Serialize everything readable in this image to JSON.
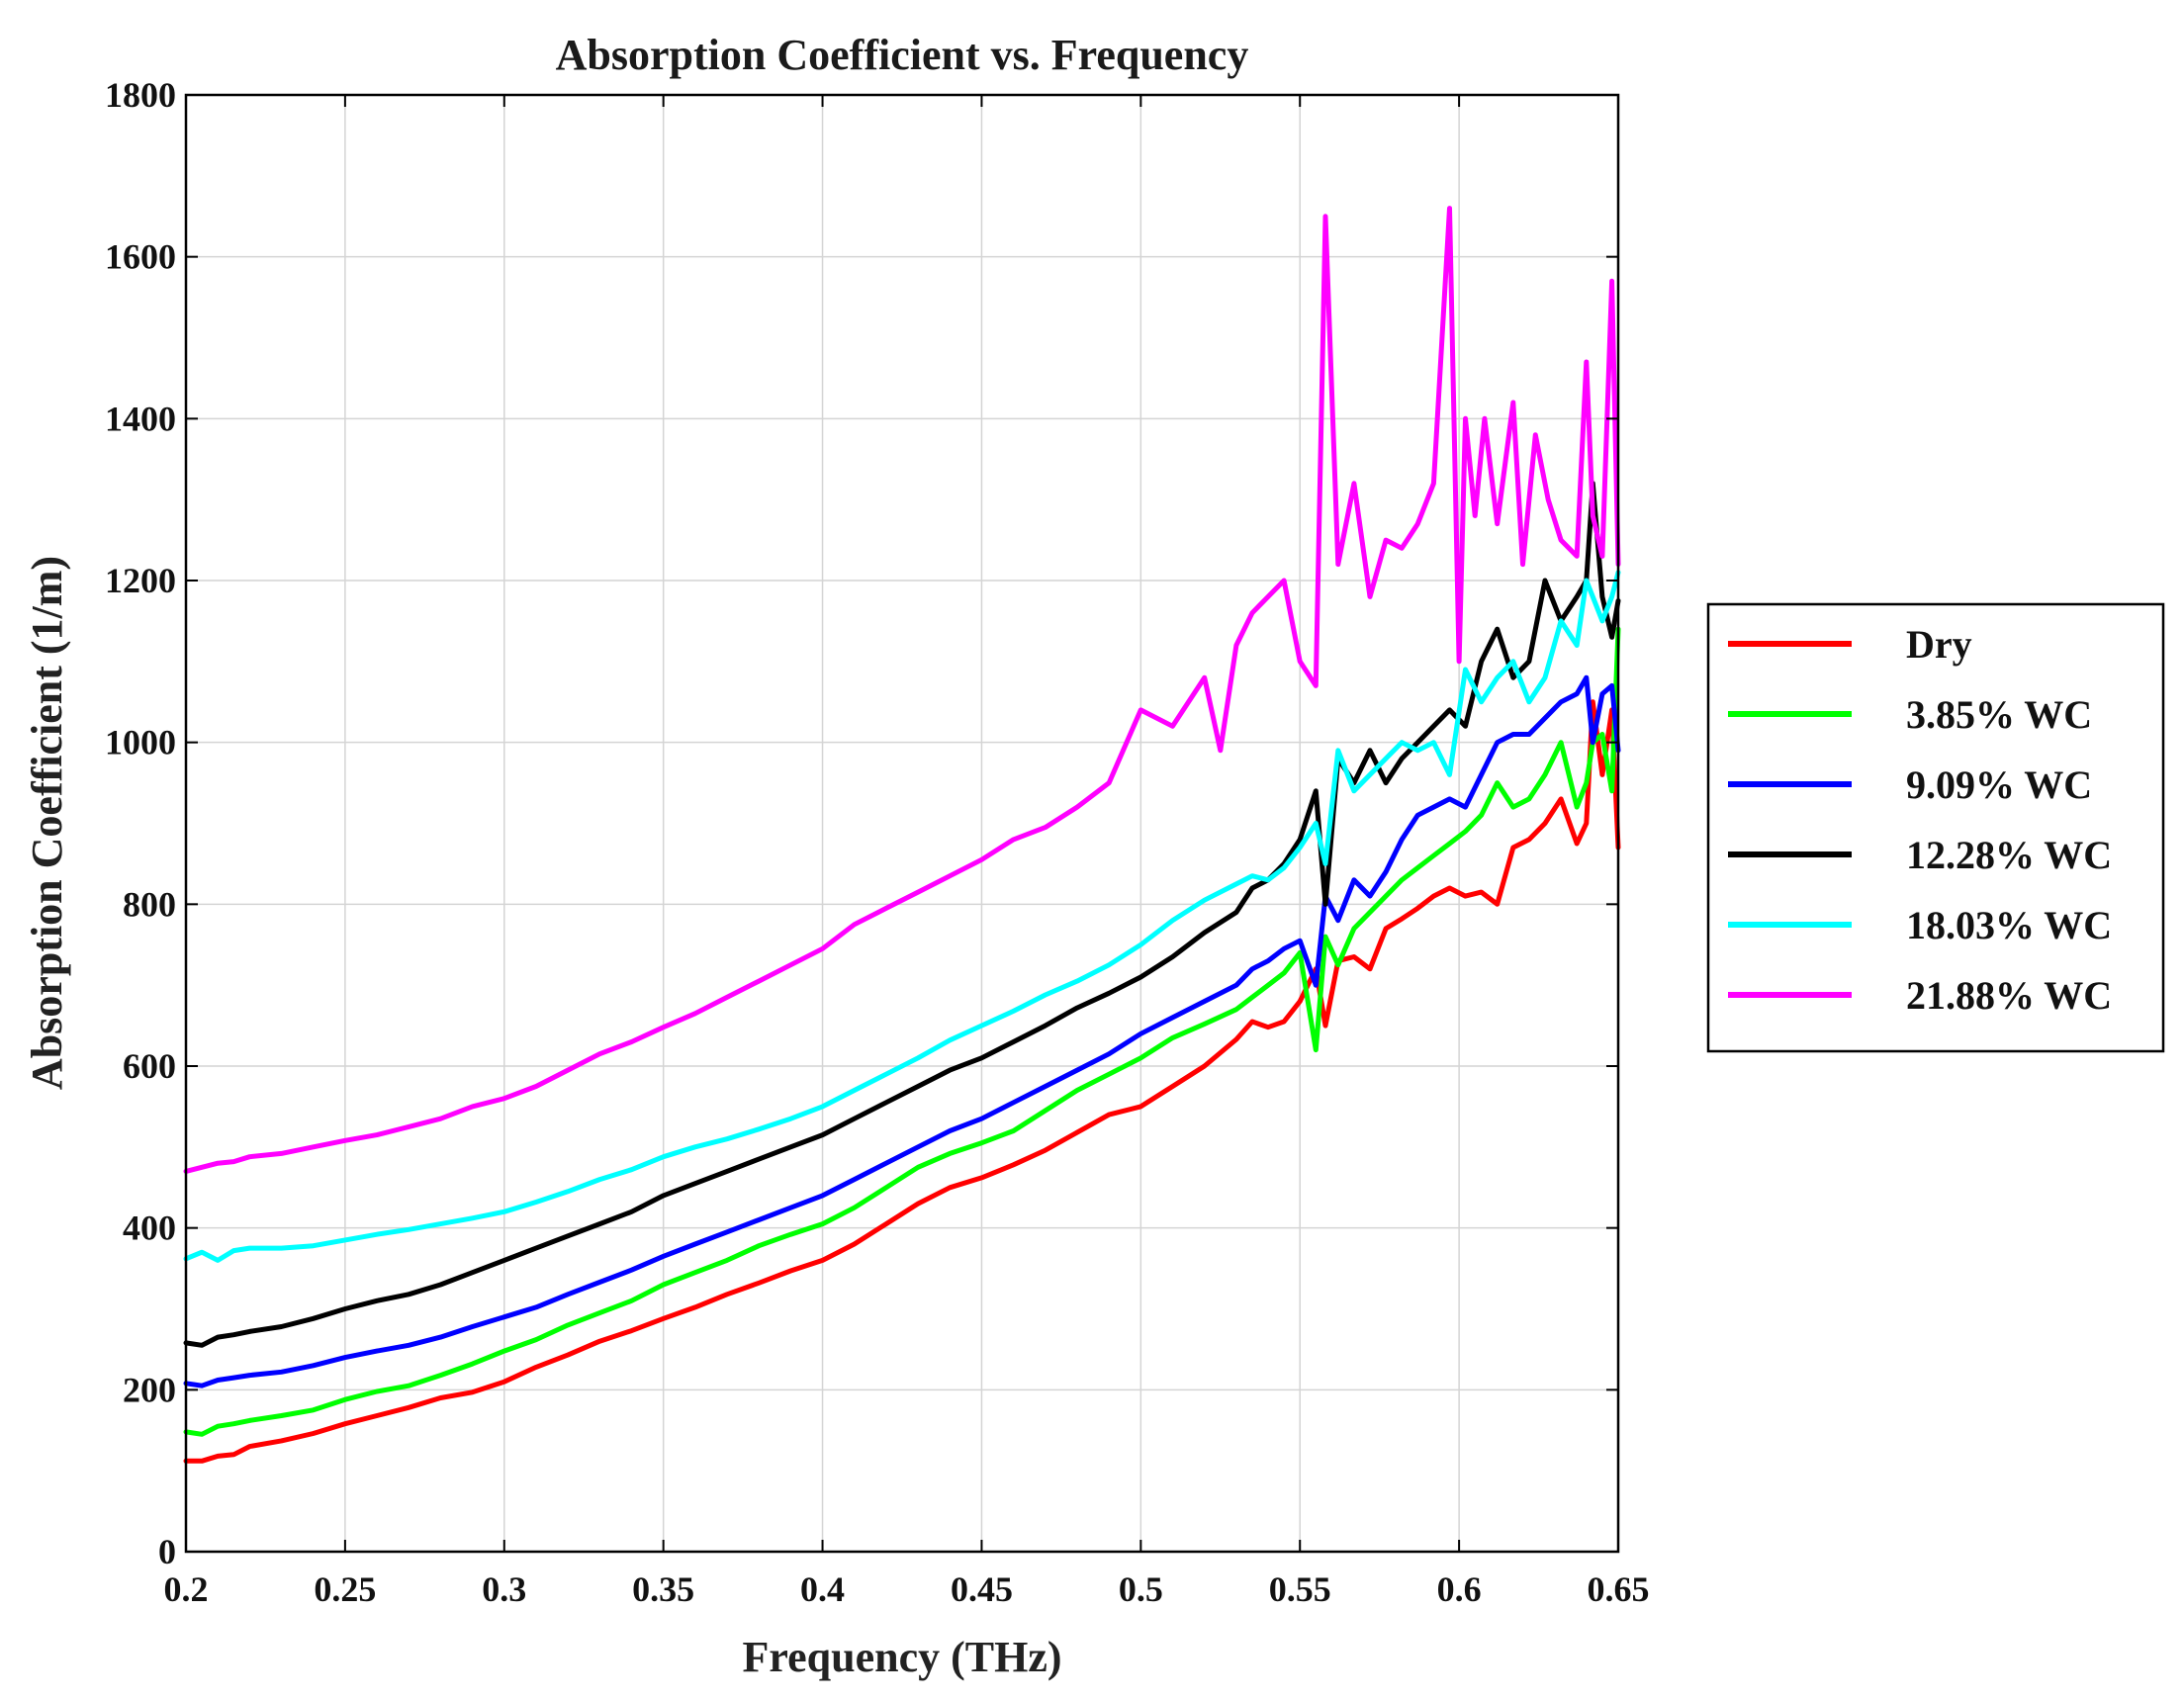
{
  "chart_data": {
    "type": "line",
    "title": "Absorption Coefficient vs. Frequency",
    "xlabel": "Frequency (THz)",
    "ylabel": "Absorption Coefficient (1/m)",
    "xlim": [
      0.2,
      0.65
    ],
    "ylim": [
      0,
      1800
    ],
    "xticks": [
      0.2,
      0.25,
      0.3,
      0.35,
      0.4,
      0.45,
      0.5,
      0.55,
      0.6,
      0.65
    ],
    "xtick_labels": [
      "0.2",
      "0.25",
      "0.3",
      "0.35",
      "0.4",
      "0.45",
      "0.5",
      "0.55",
      "0.6",
      "0.65"
    ],
    "yticks": [
      0,
      200,
      400,
      600,
      800,
      1000,
      1200,
      1400,
      1600,
      1800
    ],
    "ytick_labels": [
      "0",
      "200",
      "400",
      "600",
      "800",
      "1000",
      "1200",
      "1400",
      "1600",
      "1800"
    ],
    "grid": true,
    "legend_position": "right",
    "series": [
      {
        "name": "Dry",
        "color": "#ff0000",
        "x": [
          0.2,
          0.205,
          0.21,
          0.215,
          0.22,
          0.23,
          0.24,
          0.25,
          0.26,
          0.27,
          0.28,
          0.29,
          0.3,
          0.31,
          0.32,
          0.33,
          0.34,
          0.35,
          0.36,
          0.37,
          0.38,
          0.39,
          0.4,
          0.41,
          0.42,
          0.43,
          0.44,
          0.45,
          0.46,
          0.47,
          0.48,
          0.49,
          0.5,
          0.51,
          0.52,
          0.53,
          0.535,
          0.54,
          0.545,
          0.55,
          0.555,
          0.558,
          0.562,
          0.567,
          0.572,
          0.577,
          0.582,
          0.587,
          0.592,
          0.597,
          0.602,
          0.607,
          0.612,
          0.617,
          0.622,
          0.627,
          0.632,
          0.637,
          0.64,
          0.642,
          0.645,
          0.648,
          0.65
        ],
        "y": [
          112,
          112,
          118,
          120,
          130,
          137,
          146,
          158,
          168,
          178,
          190,
          197,
          210,
          228,
          243,
          260,
          273,
          288,
          302,
          318,
          332,
          347,
          360,
          380,
          405,
          430,
          450,
          462,
          478,
          496,
          518,
          540,
          550,
          575,
          600,
          633,
          655,
          648,
          655,
          680,
          720,
          650,
          730,
          735,
          720,
          770,
          782,
          795,
          810,
          820,
          810,
          815,
          800,
          870,
          880,
          900,
          930,
          875,
          900,
          1050,
          960,
          1040,
          870
        ]
      },
      {
        "name": "3.85% WC",
        "color": "#00ff00",
        "x": [
          0.2,
          0.205,
          0.21,
          0.215,
          0.22,
          0.23,
          0.24,
          0.25,
          0.26,
          0.27,
          0.28,
          0.29,
          0.3,
          0.31,
          0.32,
          0.33,
          0.34,
          0.35,
          0.36,
          0.37,
          0.38,
          0.39,
          0.4,
          0.41,
          0.42,
          0.43,
          0.44,
          0.45,
          0.46,
          0.47,
          0.48,
          0.49,
          0.5,
          0.51,
          0.52,
          0.53,
          0.535,
          0.54,
          0.545,
          0.55,
          0.555,
          0.558,
          0.562,
          0.567,
          0.572,
          0.577,
          0.582,
          0.587,
          0.592,
          0.597,
          0.602,
          0.607,
          0.612,
          0.617,
          0.622,
          0.627,
          0.632,
          0.637,
          0.64,
          0.642,
          0.645,
          0.648,
          0.65
        ],
        "y": [
          148,
          145,
          155,
          158,
          162,
          168,
          175,
          188,
          198,
          205,
          218,
          232,
          248,
          262,
          280,
          295,
          310,
          330,
          345,
          360,
          378,
          392,
          405,
          425,
          450,
          475,
          492,
          505,
          520,
          545,
          570,
          590,
          610,
          635,
          652,
          670,
          685,
          700,
          715,
          740,
          620,
          760,
          725,
          770,
          790,
          810,
          830,
          845,
          860,
          875,
          890,
          910,
          950,
          920,
          930,
          960,
          1000,
          920,
          950,
          1000,
          1010,
          940,
          1140
        ]
      },
      {
        "name": "9.09% WC",
        "color": "#0000ff",
        "x": [
          0.2,
          0.205,
          0.21,
          0.215,
          0.22,
          0.23,
          0.24,
          0.25,
          0.26,
          0.27,
          0.28,
          0.29,
          0.3,
          0.31,
          0.32,
          0.33,
          0.34,
          0.35,
          0.36,
          0.37,
          0.38,
          0.39,
          0.4,
          0.41,
          0.42,
          0.43,
          0.44,
          0.45,
          0.46,
          0.47,
          0.48,
          0.49,
          0.5,
          0.51,
          0.52,
          0.53,
          0.535,
          0.54,
          0.545,
          0.55,
          0.555,
          0.558,
          0.562,
          0.567,
          0.572,
          0.577,
          0.582,
          0.587,
          0.592,
          0.597,
          0.602,
          0.607,
          0.612,
          0.617,
          0.622,
          0.627,
          0.632,
          0.637,
          0.64,
          0.642,
          0.645,
          0.648,
          0.65
        ],
        "y": [
          208,
          205,
          212,
          215,
          218,
          222,
          230,
          240,
          248,
          255,
          265,
          278,
          290,
          302,
          318,
          333,
          348,
          365,
          380,
          395,
          410,
          425,
          440,
          460,
          480,
          500,
          520,
          535,
          555,
          575,
          595,
          615,
          640,
          660,
          680,
          700,
          720,
          730,
          745,
          755,
          700,
          810,
          780,
          830,
          810,
          840,
          880,
          910,
          920,
          930,
          920,
          960,
          1000,
          1010,
          1010,
          1030,
          1050,
          1060,
          1080,
          1000,
          1060,
          1070,
          990
        ]
      },
      {
        "name": "12.28% WC",
        "color": "#000000",
        "x": [
          0.2,
          0.205,
          0.21,
          0.215,
          0.22,
          0.23,
          0.24,
          0.25,
          0.26,
          0.27,
          0.28,
          0.29,
          0.3,
          0.31,
          0.32,
          0.33,
          0.34,
          0.35,
          0.36,
          0.37,
          0.38,
          0.39,
          0.4,
          0.41,
          0.42,
          0.43,
          0.44,
          0.45,
          0.46,
          0.47,
          0.48,
          0.49,
          0.5,
          0.51,
          0.52,
          0.53,
          0.535,
          0.54,
          0.545,
          0.55,
          0.555,
          0.558,
          0.562,
          0.567,
          0.572,
          0.577,
          0.582,
          0.587,
          0.592,
          0.597,
          0.602,
          0.607,
          0.612,
          0.617,
          0.622,
          0.627,
          0.632,
          0.637,
          0.64,
          0.642,
          0.645,
          0.648,
          0.65
        ],
        "y": [
          258,
          255,
          265,
          268,
          272,
          278,
          288,
          300,
          310,
          318,
          330,
          345,
          360,
          375,
          390,
          405,
          420,
          440,
          455,
          470,
          485,
          500,
          515,
          535,
          555,
          575,
          595,
          610,
          630,
          650,
          672,
          690,
          710,
          735,
          765,
          790,
          820,
          830,
          850,
          880,
          940,
          800,
          980,
          950,
          990,
          950,
          980,
          1000,
          1020,
          1040,
          1020,
          1100,
          1140,
          1080,
          1100,
          1200,
          1150,
          1180,
          1200,
          1320,
          1180,
          1130,
          1175
        ]
      },
      {
        "name": "18.03% WC",
        "color": "#00ffff",
        "x": [
          0.2,
          0.205,
          0.21,
          0.215,
          0.22,
          0.23,
          0.24,
          0.25,
          0.26,
          0.27,
          0.28,
          0.29,
          0.3,
          0.31,
          0.32,
          0.33,
          0.34,
          0.35,
          0.36,
          0.37,
          0.38,
          0.39,
          0.4,
          0.41,
          0.42,
          0.43,
          0.44,
          0.45,
          0.46,
          0.47,
          0.48,
          0.49,
          0.5,
          0.51,
          0.52,
          0.53,
          0.535,
          0.54,
          0.545,
          0.55,
          0.555,
          0.558,
          0.562,
          0.567,
          0.572,
          0.577,
          0.582,
          0.587,
          0.592,
          0.597,
          0.602,
          0.607,
          0.612,
          0.617,
          0.622,
          0.627,
          0.632,
          0.637,
          0.64,
          0.642,
          0.645,
          0.648,
          0.65
        ],
        "y": [
          362,
          370,
          360,
          372,
          375,
          375,
          378,
          385,
          392,
          398,
          405,
          412,
          420,
          432,
          445,
          460,
          472,
          488,
          500,
          510,
          522,
          535,
          550,
          570,
          590,
          610,
          632,
          650,
          668,
          688,
          705,
          725,
          750,
          780,
          805,
          825,
          835,
          830,
          845,
          870,
          900,
          850,
          990,
          940,
          960,
          980,
          1000,
          990,
          1000,
          960,
          1090,
          1050,
          1080,
          1100,
          1050,
          1080,
          1150,
          1120,
          1200,
          1180,
          1150,
          1180,
          1210
        ]
      },
      {
        "name": "21.88% WC",
        "color": "#ff00ff",
        "x": [
          0.2,
          0.205,
          0.21,
          0.215,
          0.22,
          0.23,
          0.24,
          0.25,
          0.26,
          0.27,
          0.28,
          0.29,
          0.3,
          0.31,
          0.32,
          0.33,
          0.34,
          0.35,
          0.36,
          0.37,
          0.38,
          0.39,
          0.4,
          0.41,
          0.42,
          0.43,
          0.44,
          0.45,
          0.46,
          0.47,
          0.48,
          0.49,
          0.5,
          0.51,
          0.52,
          0.525,
          0.53,
          0.535,
          0.54,
          0.545,
          0.55,
          0.555,
          0.558,
          0.562,
          0.567,
          0.572,
          0.577,
          0.582,
          0.587,
          0.592,
          0.597,
          0.6,
          0.602,
          0.605,
          0.608,
          0.612,
          0.617,
          0.62,
          0.624,
          0.628,
          0.632,
          0.637,
          0.64,
          0.642,
          0.645,
          0.648,
          0.65
        ],
        "y": [
          470,
          475,
          480,
          482,
          488,
          492,
          500,
          508,
          515,
          525,
          535,
          550,
          560,
          575,
          595,
          615,
          630,
          648,
          665,
          685,
          705,
          725,
          745,
          775,
          795,
          815,
          835,
          855,
          880,
          895,
          920,
          950,
          1040,
          1020,
          1080,
          990,
          1120,
          1160,
          1180,
          1200,
          1100,
          1070,
          1650,
          1220,
          1320,
          1180,
          1250,
          1240,
          1270,
          1320,
          1660,
          1100,
          1400,
          1280,
          1400,
          1270,
          1420,
          1220,
          1380,
          1300,
          1250,
          1230,
          1470,
          1280,
          1230,
          1570,
          1220
        ]
      }
    ]
  }
}
